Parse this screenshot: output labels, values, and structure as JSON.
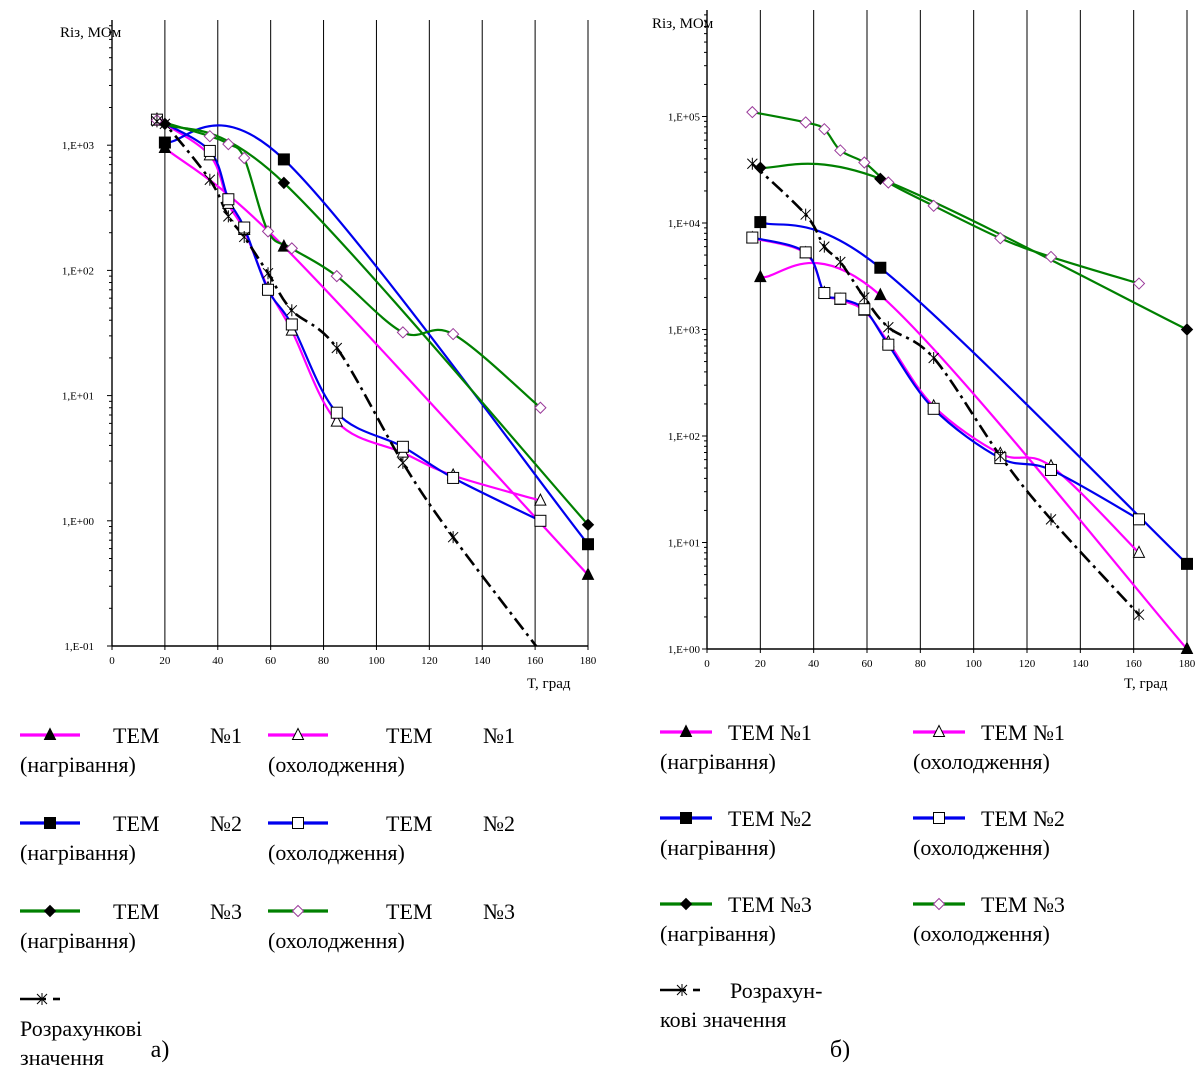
{
  "chart_data": [
    {
      "type": "line",
      "y_scale": "log",
      "ylabel": "Rіз, МОм",
      "xlabel": "T, град",
      "xlim": [
        0,
        180
      ],
      "ylim": [
        0.1,
        10000
      ],
      "x_ticks": [
        "0",
        "20",
        "40",
        "60",
        "80",
        "100",
        "120",
        "140",
        "160",
        "180"
      ],
      "y_ticks": [
        "1,E-01",
        "1,E+00",
        "1,E+01",
        "1,E+02",
        "1,E+03"
      ],
      "grid": "vertical",
      "caption": "а)",
      "legend": [
        [
          "ТЕМ",
          "№1",
          "(нагрівання)"
        ],
        [
          "ТЕМ",
          "№1",
          "(охолодження)"
        ],
        [
          "ТЕМ",
          "№2",
          "(нагрівання)"
        ],
        [
          "ТЕМ",
          "№2",
          "(охолодження)"
        ],
        [
          "ТЕМ",
          "№3",
          "(нагрівання)"
        ],
        [
          "ТЕМ",
          "№3",
          "(охолодження)"
        ],
        [
          "Розрахункові",
          "значення"
        ]
      ],
      "series": [
        {
          "key": "s1h",
          "color": "#ff00ff",
          "marker": "triangle-filled",
          "dash": "",
          "x": [
            20,
            65,
            180
          ],
          "y": [
            950,
            155,
            0.37
          ]
        },
        {
          "key": "s1c",
          "color": "#ff00ff",
          "marker": "triangle-open",
          "dash": "",
          "x": [
            17,
            37,
            44,
            50,
            59,
            68,
            85,
            110,
            129,
            162
          ],
          "y": [
            1600,
            830,
            340,
            210,
            72,
            33,
            6.2,
            3.5,
            2.3,
            1.45
          ]
        },
        {
          "key": "s2h",
          "color": "#0000ee",
          "marker": "square-filled",
          "dash": "",
          "x": [
            20,
            65,
            180
          ],
          "y": [
            1050,
            770,
            0.65
          ]
        },
        {
          "key": "s2c",
          "color": "#0000ee",
          "marker": "square-open",
          "dash": "",
          "x": [
            17,
            37,
            44,
            50,
            59,
            68,
            85,
            110,
            129,
            162
          ],
          "y": [
            1600,
            900,
            370,
            220,
            70,
            37,
            7.3,
            3.9,
            2.2,
            1.0
          ]
        },
        {
          "key": "s3h",
          "color": "#008000",
          "marker": "diamond-filled",
          "dash": "",
          "x": [
            20,
            65,
            180
          ],
          "y": [
            1480,
            500,
            0.93
          ]
        },
        {
          "key": "s3c",
          "color": "#008000",
          "marker": "diamond-open",
          "dash": "",
          "x": [
            17,
            37,
            44,
            50,
            59,
            68,
            85,
            110,
            129,
            162
          ],
          "y": [
            1580,
            1180,
            1020,
            790,
            205,
            150,
            90,
            32,
            31,
            8.0
          ]
        },
        {
          "key": "calc",
          "color": "#000000",
          "marker": "star",
          "dash": "14 5 3 5",
          "x": [
            17,
            20,
            37,
            44,
            50,
            59,
            68,
            85,
            110,
            129,
            162
          ],
          "y": [
            1550,
            1480,
            530,
            270,
            185,
            95,
            48,
            24,
            2.9,
            0.74,
            0.09
          ]
        }
      ]
    },
    {
      "type": "line",
      "y_scale": "log",
      "ylabel": "Rіз, МОм",
      "xlabel": "T, град",
      "xlim": [
        0,
        180
      ],
      "ylim": [
        1,
        1000000
      ],
      "x_ticks": [
        "0",
        "20",
        "40",
        "60",
        "80",
        "100",
        "120",
        "140",
        "160",
        "180"
      ],
      "y_ticks": [
        "1,E+00",
        "1,E+01",
        "1,E+02",
        "1,E+03",
        "1,E+04",
        "1,E+05"
      ],
      "grid": "vertical",
      "caption": "б)",
      "legend": [
        [
          "ТЕМ №1",
          "(нагрівання)"
        ],
        [
          "ТЕМ №1",
          "(охолодження)"
        ],
        [
          "ТЕМ №2",
          "(нагрівання)"
        ],
        [
          "ТЕМ №2",
          "(охолодження)"
        ],
        [
          "ТЕМ №3",
          "(нагрівання)"
        ],
        [
          "ТЕМ №3",
          "(охолодження)"
        ],
        [
          "Розрахун-",
          "кові значення"
        ]
      ],
      "series": [
        {
          "key": "s1h",
          "color": "#ff00ff",
          "marker": "triangle-filled",
          "dash": "",
          "x": [
            20,
            65,
            180
          ],
          "y": [
            3100,
            2100,
            1.0
          ]
        },
        {
          "key": "s1c",
          "color": "#ff00ff",
          "marker": "triangle-open",
          "dash": "",
          "x": [
            17,
            37,
            44,
            50,
            59,
            68,
            85,
            110,
            129,
            162
          ],
          "y": [
            7200,
            5200,
            2200,
            1900,
            1500,
            760,
            190,
            68,
            52,
            8.0
          ]
        },
        {
          "key": "s2h",
          "color": "#0000ee",
          "marker": "square-filled",
          "dash": "",
          "x": [
            20,
            65,
            180
          ],
          "y": [
            10200,
            3800,
            6.3
          ]
        },
        {
          "key": "s2c",
          "color": "#0000ee",
          "marker": "square-open",
          "dash": "",
          "x": [
            17,
            37,
            44,
            50,
            59,
            68,
            85,
            110,
            129,
            162
          ],
          "y": [
            7300,
            5300,
            2200,
            1950,
            1550,
            720,
            180,
            62,
            48,
            16.5
          ]
        },
        {
          "key": "s3h",
          "color": "#008000",
          "marker": "diamond-filled",
          "dash": "",
          "x": [
            20,
            65,
            180
          ],
          "y": [
            33000,
            26000,
            1000
          ]
        },
        {
          "key": "s3c",
          "color": "#008000",
          "marker": "diamond-open",
          "dash": "",
          "x": [
            17,
            37,
            44,
            50,
            59,
            68,
            85,
            110,
            129,
            162
          ],
          "y": [
            110000,
            88000,
            76000,
            48000,
            37000,
            24000,
            14500,
            7200,
            4800,
            2700
          ]
        },
        {
          "key": "calc",
          "color": "#000000",
          "marker": "star",
          "dash": "14 5 3 5",
          "x": [
            17,
            37,
            44,
            50,
            59,
            68,
            85,
            110,
            129,
            162
          ],
          "y": [
            36000,
            12000,
            6000,
            4300,
            2000,
            1050,
            540,
            65,
            16.5,
            2.1
          ]
        }
      ]
    }
  ]
}
